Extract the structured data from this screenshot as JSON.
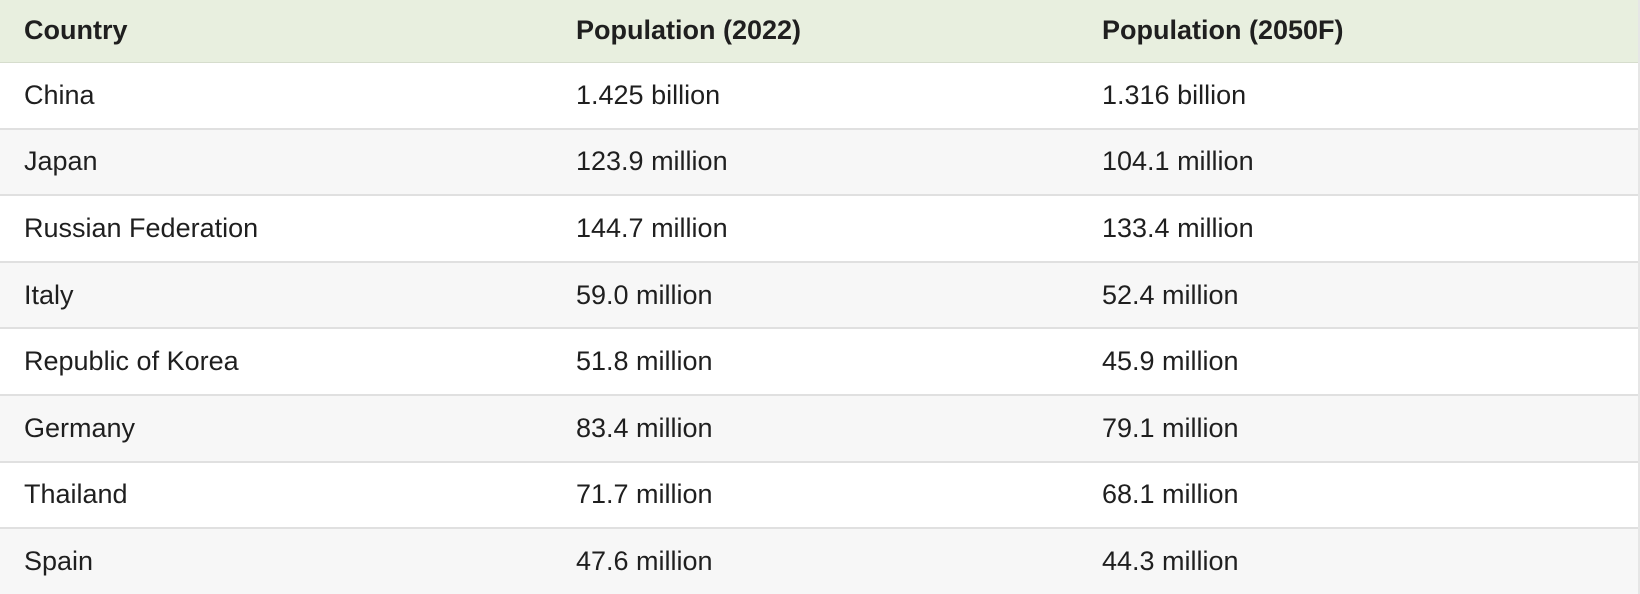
{
  "table": {
    "headers": [
      "Country",
      "Population (2022)",
      "Population (2050F)"
    ],
    "rows": [
      [
        "China",
        "1.425 billion",
        "1.316 billion"
      ],
      [
        "Japan",
        "123.9 million",
        "104.1 million"
      ],
      [
        "Russian Federation",
        "144.7 million",
        "133.4 million"
      ],
      [
        "Italy",
        "59.0 million",
        "52.4 million"
      ],
      [
        "Republic of Korea",
        "51.8 million",
        "45.9 million"
      ],
      [
        "Germany",
        "83.4 million",
        "79.1 million"
      ],
      [
        "Thailand",
        "71.7 million",
        "68.1 million"
      ],
      [
        "Spain",
        "47.6 million",
        "44.3 million"
      ]
    ]
  }
}
